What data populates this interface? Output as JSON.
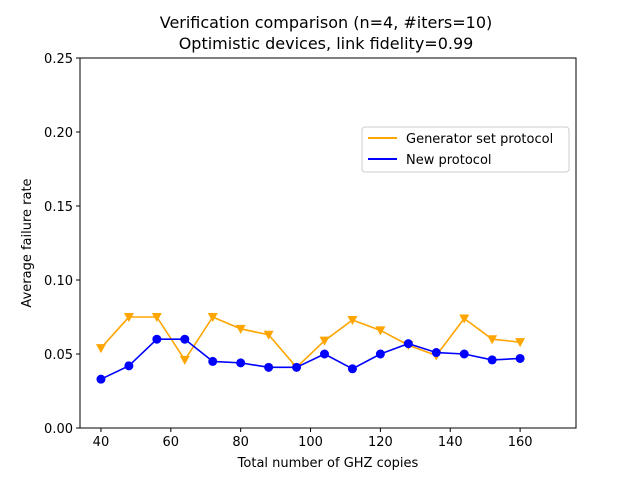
{
  "chart_data": {
    "type": "line",
    "title": "Verification comparison (n=4, #iters=10)",
    "subtitle": "Optimistic devices, link fidelity=0.99",
    "xlabel": "Total number of GHZ copies",
    "ylabel": "Average failure rate",
    "xlim": [
      34,
      176
    ],
    "ylim": [
      0,
      0.25
    ],
    "xticks": [
      40,
      60,
      80,
      100,
      120,
      140,
      160
    ],
    "yticks": [
      0.0,
      0.05,
      0.1,
      0.15,
      0.2,
      0.25
    ],
    "xtick_labels": [
      "40",
      "60",
      "80",
      "100",
      "120",
      "140",
      "160"
    ],
    "ytick_labels": [
      "0.00",
      "0.05",
      "0.10",
      "0.15",
      "0.20",
      "0.25"
    ],
    "grid": false,
    "legend_position": "center-right",
    "x": [
      40,
      48,
      56,
      64,
      72,
      80,
      88,
      96,
      104,
      112,
      120,
      128,
      136,
      144,
      152,
      160
    ],
    "series": [
      {
        "name": "Generator set protocol",
        "color": "#ffa500",
        "marker": "triangle-down",
        "values": [
          0.054,
          0.075,
          0.075,
          0.046,
          0.075,
          0.067,
          0.063,
          0.041,
          0.059,
          0.073,
          0.066,
          0.056,
          0.049,
          0.074,
          0.06,
          0.058
        ]
      },
      {
        "name": "New protocol",
        "color": "#0000ff",
        "marker": "circle",
        "values": [
          0.033,
          0.042,
          0.06,
          0.06,
          0.045,
          0.044,
          0.041,
          0.041,
          0.05,
          0.04,
          0.05,
          0.057,
          0.051,
          0.05,
          0.046,
          0.047
        ]
      }
    ]
  }
}
